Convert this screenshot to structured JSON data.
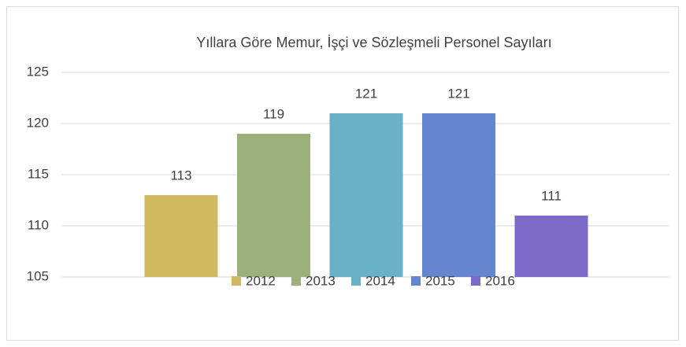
{
  "chart_data": {
    "type": "bar",
    "title": "Yıllara Göre Memur, İşçi ve Sözleşmeli Personel Sayıları",
    "categories": [
      null
    ],
    "series": [
      {
        "name": "2012",
        "color": "#d1b962",
        "values": [
          113
        ]
      },
      {
        "name": "2013",
        "color": "#9cb07c",
        "values": [
          119
        ]
      },
      {
        "name": "2014",
        "color": "#69b0c9",
        "values": [
          121
        ]
      },
      {
        "name": "2015",
        "color": "#6585cf",
        "values": [
          121
        ]
      },
      {
        "name": "2016",
        "color": "#7c6ac8",
        "values": [
          111
        ]
      }
    ],
    "ylim": [
      105,
      125
    ],
    "yticks": [
      105,
      110,
      115,
      120,
      125
    ],
    "grid": true,
    "legend": "bottom"
  }
}
